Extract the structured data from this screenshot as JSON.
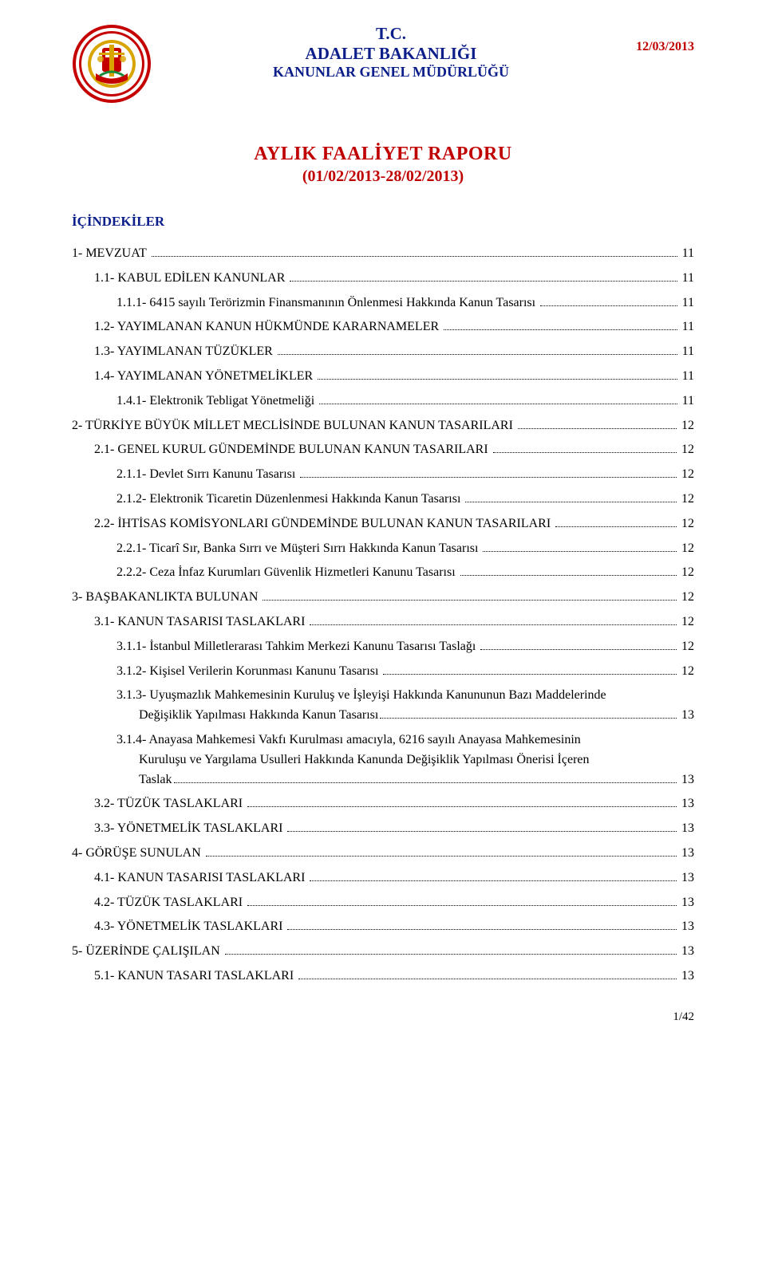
{
  "header": {
    "line1": "T.C.",
    "line2": "ADALET BAKANLIĞI",
    "line3": "KANUNLAR GENEL MÜDÜRLÜĞÜ",
    "date": "12/03/2013"
  },
  "logo": {
    "outer_ring": "#c40000",
    "mid_ring": "#ffffff",
    "text_ring": "#2a2a6a",
    "gold": "#d8a400",
    "red_shield": "#c40000",
    "white": "#ffffff",
    "green": "#1a8a3a"
  },
  "title": {
    "main": "AYLIK FAALİYET RAPORU",
    "sub": "(01/02/2013-28/02/2013)"
  },
  "toc_heading": "İÇİNDEKİLER",
  "entries": [
    {
      "level": 0,
      "text": "1- MEVZUAT",
      "page": "11"
    },
    {
      "level": 1,
      "text": "1.1- KABUL EDİLEN KANUNLAR",
      "page": "11"
    },
    {
      "level": 2,
      "text": "1.1.1- 6415 sayılı Terörizmin Finansmanının Önlenmesi Hakkında Kanun Tasarısı",
      "page": "11"
    },
    {
      "level": 1,
      "text": "1.2- YAYIMLANAN KANUN HÜKMÜNDE KARARNAMELER",
      "page": "11"
    },
    {
      "level": 1,
      "text": "1.3- YAYIMLANAN TÜZÜKLER",
      "page": "11"
    },
    {
      "level": 1,
      "text": "1.4- YAYIMLANAN YÖNETMELİKLER",
      "page": "11"
    },
    {
      "level": 2,
      "text": "1.4.1- Elektronik Tebligat Yönetmeliği",
      "page": "11"
    },
    {
      "level": 0,
      "text": "2- TÜRKİYE BÜYÜK MİLLET MECLİSİNDE BULUNAN KANUN TASARILARI",
      "page": "12"
    },
    {
      "level": 1,
      "text": "2.1- GENEL KURUL GÜNDEMİNDE BULUNAN KANUN TASARILARI",
      "page": "12"
    },
    {
      "level": 2,
      "text": "2.1.1- Devlet Sırrı Kanunu Tasarısı",
      "page": "12"
    },
    {
      "level": 2,
      "text": "2.1.2- Elektronik Ticaretin Düzenlenmesi Hakkında Kanun Tasarısı",
      "page": "12"
    },
    {
      "level": 1,
      "text": "2.2- İHTİSAS KOMİSYONLARI GÜNDEMİNDE BULUNAN KANUN TASARILARI",
      "page": "12"
    },
    {
      "level": 2,
      "text": "2.2.1- Ticarî Sır, Banka Sırrı ve Müşteri Sırrı Hakkında Kanun Tasarısı",
      "page": "12"
    },
    {
      "level": 2,
      "text": "2.2.2- Ceza İnfaz Kurumları Güvenlik Hizmetleri Kanunu Tasarısı",
      "page": "12"
    },
    {
      "level": 0,
      "text": "3- BAŞBAKANLIKTA BULUNAN",
      "page": "12"
    },
    {
      "level": 1,
      "text": "3.1- KANUN TASARISI TASLAKLARI",
      "page": "12"
    },
    {
      "level": 2,
      "text": "3.1.1- İstanbul Milletlerarası Tahkim Merkezi Kanunu Tasarısı Taslağı",
      "page": "12"
    },
    {
      "level": 2,
      "text": "3.1.2- Kişisel Verilerin Korunması Kanunu Tasarısı",
      "page": "12"
    }
  ],
  "wrap_entries": [
    {
      "level": 2,
      "first": "3.1.3- Uyuşmazlık Mahkemesinin Kuruluş ve İşleyişi Hakkında Kanununun Bazı Maddelerinde",
      "tail": "Değişiklik Yapılması Hakkında Kanun Tasarısı",
      "page": "13"
    },
    {
      "level": 2,
      "first": "3.1.4- Anayasa Mahkemesi Vakfı Kurulması amacıyla, 6216 sayılı Anayasa Mahkemesinin",
      "mid": "Kuruluşu ve Yargılama Usulleri Hakkında Kanunda Değişiklik Yapılması Önerisi İçeren",
      "tail": "Taslak",
      "page": "13"
    }
  ],
  "entries2": [
    {
      "level": 1,
      "text": "3.2- TÜZÜK TASLAKLARI",
      "page": "13"
    },
    {
      "level": 1,
      "text": "3.3- YÖNETMELİK TASLAKLARI",
      "page": "13"
    },
    {
      "level": 0,
      "text": "4- GÖRÜŞE SUNULAN",
      "page": "13"
    },
    {
      "level": 1,
      "text": "4.1- KANUN TASARISI TASLAKLARI",
      "page": "13"
    },
    {
      "level": 1,
      "text": "4.2- TÜZÜK TASLAKLARI",
      "page": "13"
    },
    {
      "level": 1,
      "text": "4.3- YÖNETMELİK TASLAKLARI",
      "page": "13"
    },
    {
      "level": 0,
      "text": "5- ÜZERİNDE ÇALIŞILAN",
      "page": "13"
    },
    {
      "level": 1,
      "text": "5.1- KANUN TASARI TASLAKLARI",
      "page": "13"
    }
  ],
  "footer": "1/42",
  "colors": {
    "heading_blue": "#0b1e8a",
    "accent_red": "#c00000",
    "text": "#000000",
    "background": "#ffffff"
  },
  "typography": {
    "base_font": "Times New Roman",
    "header_line1_pt": 21,
    "header_line2_pt": 21,
    "header_line3_pt": 18,
    "date_pt": 16,
    "main_title_pt": 24,
    "sub_title_pt": 20,
    "toc_heading_pt": 17,
    "toc_body_pt": 16
  }
}
